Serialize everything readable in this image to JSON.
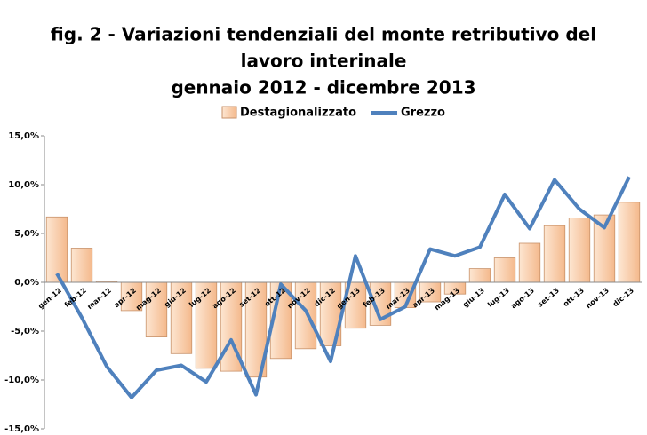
{
  "chart_data": {
    "type": "bar",
    "title": [
      "fig. 2 - Variazioni tendenziali del monte retributivo del",
      "lavoro interinale",
      "gennaio 2012 - dicembre 2013"
    ],
    "categories": [
      "gen-12",
      "feb-12",
      "mar-12",
      "apr-12",
      "mag-12",
      "giu-12",
      "lug-12",
      "ago-12",
      "set-12",
      "ott-12",
      "nov-12",
      "dic-12",
      "gen-13",
      "feb-13",
      "mar-13",
      "apr-13",
      "mag-13",
      "giu-13",
      "lug-13",
      "ago-13",
      "set-13",
      "ott-13",
      "nov-13",
      "dic-13"
    ],
    "series": [
      {
        "name": "Destagionalizzato",
        "type": "bar",
        "color": "#f7c9a4",
        "values": [
          6.7,
          3.5,
          0.1,
          -2.9,
          -5.6,
          -7.3,
          -8.8,
          -9.1,
          -9.7,
          -7.8,
          -6.8,
          -6.5,
          -4.7,
          -4.4,
          -2.6,
          -2.0,
          -1.2,
          1.4,
          2.5,
          4.0,
          5.8,
          6.6,
          6.9,
          8.2
        ]
      },
      {
        "name": "Grezzo",
        "type": "line",
        "color": "#4f81bd",
        "values": [
          0.9,
          -3.6,
          -8.6,
          -11.8,
          -9.0,
          -8.5,
          -10.2,
          -5.9,
          -11.5,
          -0.2,
          -2.9,
          -8.1,
          2.7,
          -3.8,
          -2.5,
          3.4,
          2.7,
          3.6,
          9.0,
          5.5,
          10.5,
          7.5,
          5.6,
          10.8
        ]
      }
    ],
    "ylim": [
      -15,
      15
    ],
    "yticks": [
      {
        "value": -15,
        "label": "-15,0%"
      },
      {
        "value": -10,
        "label": "-10,0%"
      },
      {
        "value": -5,
        "label": "-5,0%"
      },
      {
        "value": 0,
        "label": "0,0%"
      },
      {
        "value": 5,
        "label": "5,0%"
      },
      {
        "value": 10,
        "label": "10,0%"
      },
      {
        "value": 15,
        "label": "15,0%"
      }
    ],
    "legend": "top"
  }
}
